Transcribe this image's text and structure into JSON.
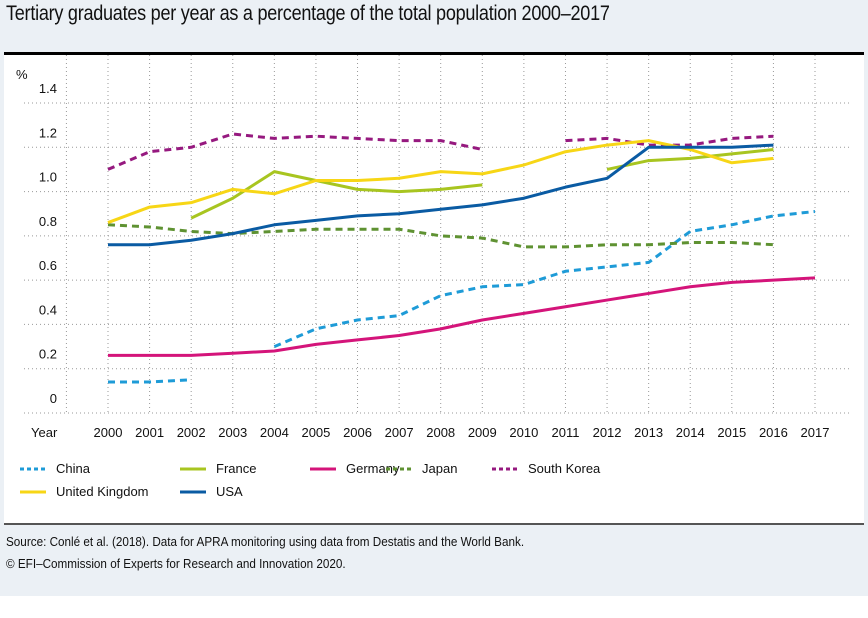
{
  "title": "Tertiary graduates per year as a percentage of the total population 2000–2017",
  "source_lines": [
    "Source: Conlé et al. (2018). Data for APRA monitoring using data from Destatis and the World Bank.",
    "© EFI–Commission of Experts for Research and Innovation 2020."
  ],
  "chart_data": {
    "type": "line",
    "title": "Tertiary graduates per year as a percentage of the total population 2000–2017",
    "xlabel": "Year",
    "ylabel": "%",
    "ylim": [
      0,
      1.4
    ],
    "yticks": [
      "0",
      "0.2",
      "0.4",
      "0.6",
      "0.8",
      "1.0",
      "1.2",
      "1.4"
    ],
    "x": [
      "2000",
      "2001",
      "2002",
      "2003",
      "2004",
      "2005",
      "2006",
      "2007",
      "2008",
      "2009",
      "2010",
      "2011",
      "2012",
      "2013",
      "2014",
      "2015",
      "2016",
      "2017"
    ],
    "grid": true,
    "legend_position": "bottom",
    "series": [
      {
        "name": "China",
        "color": "#1e9bd7",
        "dashed": true,
        "values": [
          0.14,
          0.14,
          0.15,
          null,
          0.3,
          0.38,
          0.42,
          0.44,
          0.53,
          0.57,
          0.58,
          0.64,
          0.66,
          0.68,
          0.82,
          0.85,
          0.89,
          0.91
        ]
      },
      {
        "name": "France",
        "color": "#a8c520",
        "dashed": false,
        "values": [
          null,
          null,
          0.88,
          0.97,
          1.09,
          1.05,
          1.01,
          1.0,
          1.01,
          1.03,
          null,
          null,
          1.1,
          1.14,
          1.15,
          1.17,
          1.19,
          null
        ]
      },
      {
        "name": "Germany",
        "color": "#d4147a",
        "dashed": false,
        "values": [
          0.26,
          0.26,
          0.26,
          0.27,
          0.28,
          0.31,
          0.33,
          0.35,
          0.38,
          0.42,
          0.45,
          0.48,
          0.51,
          0.54,
          0.57,
          0.59,
          0.6,
          0.61
        ]
      },
      {
        "name": "Japan",
        "color": "#5f9232",
        "dashed": true,
        "values": [
          0.85,
          0.84,
          0.82,
          0.81,
          0.82,
          0.83,
          0.83,
          0.83,
          0.8,
          0.79,
          0.75,
          0.75,
          0.76,
          0.76,
          0.77,
          0.77,
          0.76,
          null
        ]
      },
      {
        "name": "South Korea",
        "color": "#96197f",
        "dashed": true,
        "values": [
          1.1,
          1.18,
          1.2,
          1.26,
          1.24,
          1.25,
          1.24,
          1.23,
          1.23,
          1.19,
          null,
          1.23,
          1.24,
          1.21,
          1.21,
          1.24,
          1.25,
          null
        ]
      },
      {
        "name": "United Kingdom",
        "color": "#f7d616",
        "dashed": false,
        "values": [
          0.86,
          0.93,
          0.95,
          1.01,
          0.99,
          1.05,
          1.05,
          1.06,
          1.09,
          1.08,
          1.12,
          1.18,
          1.21,
          1.23,
          1.19,
          1.13,
          1.15,
          null
        ]
      },
      {
        "name": "USA",
        "color": "#0a5ba3",
        "dashed": false,
        "values": [
          0.76,
          0.76,
          0.78,
          0.81,
          0.85,
          0.87,
          0.89,
          0.9,
          0.92,
          0.94,
          0.97,
          1.02,
          1.06,
          1.2,
          1.2,
          1.2,
          1.21,
          null
        ]
      }
    ]
  }
}
